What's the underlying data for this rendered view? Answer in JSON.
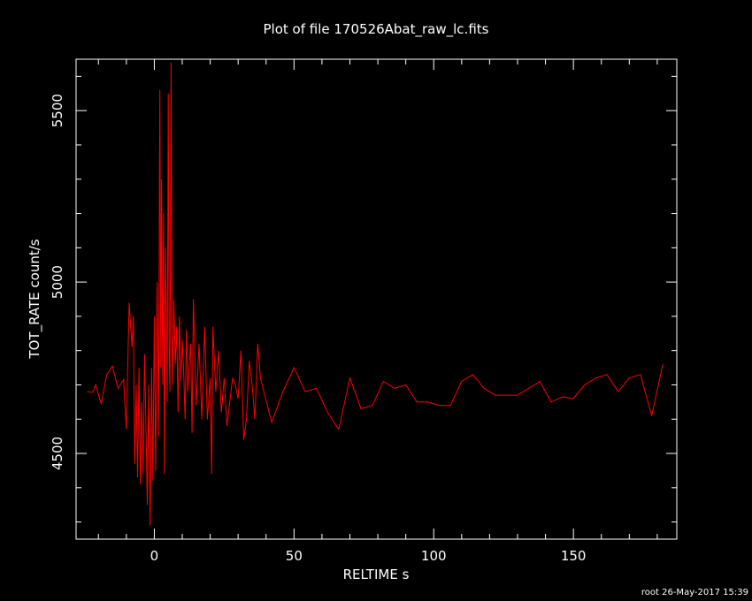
{
  "chart_data": {
    "type": "line",
    "title": "Plot of file 170526Abat_raw_lc.fits",
    "xlabel": "RELTIME  s",
    "ylabel": "TOT_RATE  count/s",
    "xlim": [
      -28,
      187
    ],
    "ylim": [
      4250,
      5650
    ],
    "x_ticks": [
      0,
      50,
      100,
      150
    ],
    "x_tick_labels": [
      "0",
      "50",
      "100",
      "150"
    ],
    "y_ticks": [
      4500,
      5000,
      5500
    ],
    "y_tick_labels": [
      "4500",
      "5000",
      "5500"
    ],
    "grid": false,
    "series": [
      {
        "color": "#ff0000",
        "x": [
          -24,
          -22,
          -21,
          -19,
          -17,
          -15,
          -13,
          -11,
          -10,
          -9,
          -8,
          -7.5,
          -7,
          -6.5,
          -6,
          -5.5,
          -5,
          -4.5,
          -4,
          -3.5,
          -3,
          -2.5,
          -2,
          -1.5,
          -1,
          -0.5,
          0,
          0.5,
          1,
          1.5,
          2,
          2.3,
          2.6,
          3,
          3.3,
          3.6,
          4,
          4.3,
          4.6,
          5,
          5.3,
          5.6,
          6,
          6.3,
          6.6,
          7,
          7.5,
          8,
          8.5,
          9,
          9.5,
          10,
          10.5,
          11,
          11.5,
          12,
          12.5,
          13,
          13.5,
          14,
          15,
          16,
          17,
          18,
          19,
          20,
          20.5,
          21,
          22,
          23,
          24,
          25,
          26,
          27,
          28,
          29,
          30,
          31,
          32,
          33,
          34,
          35,
          36,
          37,
          38,
          42,
          46,
          50,
          54,
          58,
          62,
          66,
          70,
          74,
          78,
          82,
          86,
          90,
          94,
          98,
          102,
          106,
          110,
          114,
          118,
          122,
          126,
          130,
          134,
          138,
          142,
          146,
          150,
          154,
          158,
          162,
          166,
          170,
          174,
          178,
          182
        ],
        "y": [
          4680,
          4678,
          4700,
          4645,
          4730,
          4755,
          4690,
          4715,
          4570,
          4940,
          4810,
          4900,
          4470,
          4700,
          4430,
          4750,
          4410,
          4650,
          4440,
          4790,
          4580,
          4350,
          4700,
          4290,
          4750,
          4420,
          4900,
          4450,
          5000,
          4550,
          5560,
          4750,
          5300,
          4700,
          5200,
          4440,
          5100,
          4900,
          4650,
          5550,
          4800,
          4680,
          5640,
          4850,
          4700,
          4950,
          4760,
          4870,
          4620,
          4900,
          4710,
          4830,
          4740,
          4600,
          4860,
          4680,
          4760,
          4820,
          4560,
          4950,
          4640,
          4820,
          4600,
          4870,
          4600,
          4720,
          4440,
          4870,
          4680,
          4800,
          4620,
          4720,
          4580,
          4650,
          4720,
          4700,
          4660,
          4800,
          4540,
          4600,
          4770,
          4700,
          4600,
          4820,
          4720,
          4590,
          4680,
          4750,
          4680,
          4690,
          4620,
          4570,
          4720,
          4630,
          4640,
          4710,
          4690,
          4700,
          4650,
          4650,
          4640,
          4640,
          4710,
          4730,
          4690,
          4670,
          4670,
          4670,
          4690,
          4710,
          4650,
          4665,
          4660,
          4700,
          4720,
          4730,
          4680,
          4720,
          4730,
          4610,
          4760
        ]
      }
    ]
  },
  "footer": {
    "stamp": "root 26-May-2017 15:39"
  }
}
